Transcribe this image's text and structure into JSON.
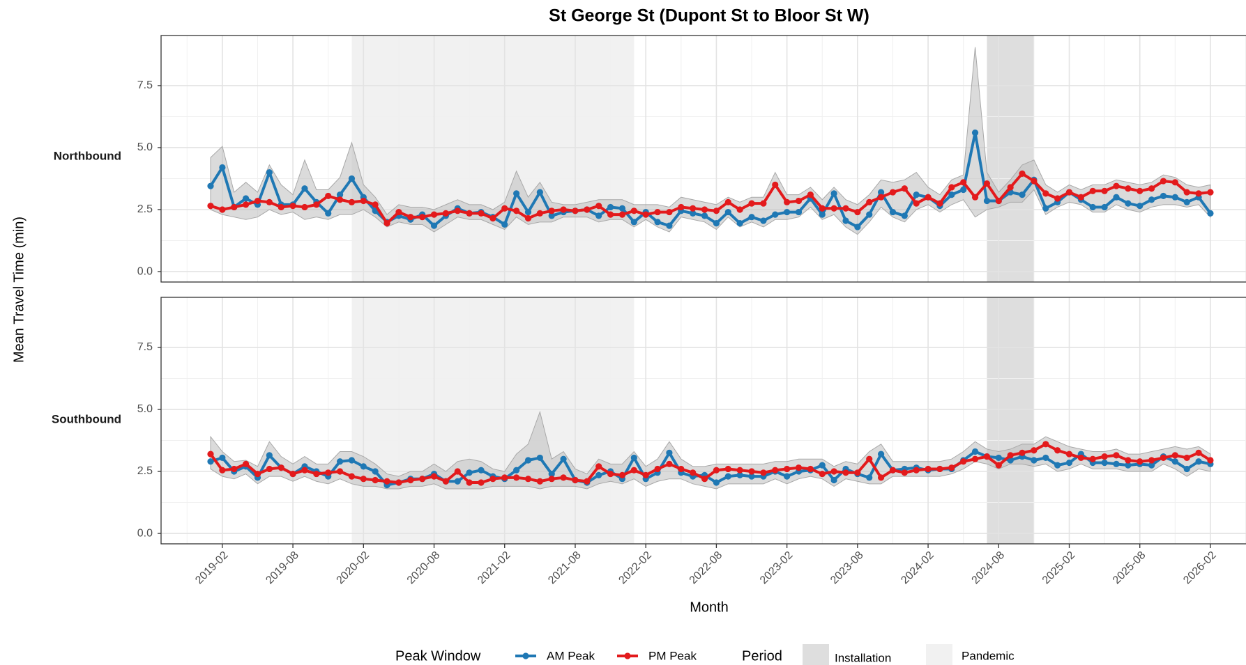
{
  "chart_data": {
    "type": "line",
    "title": "St George St (Dupont St to Bloor St W)",
    "x_label": "Month",
    "y_label": "Mean Travel Time (min)",
    "x": [
      "2019-01",
      "2019-02",
      "2019-03",
      "2019-04",
      "2019-05",
      "2019-06",
      "2019-07",
      "2019-08",
      "2019-09",
      "2019-10",
      "2019-11",
      "2019-12",
      "2020-01",
      "2020-02",
      "2020-03",
      "2020-04",
      "2020-05",
      "2020-06",
      "2020-07",
      "2020-08",
      "2020-09",
      "2020-10",
      "2020-11",
      "2020-12",
      "2021-01",
      "2021-02",
      "2021-03",
      "2021-04",
      "2021-05",
      "2021-06",
      "2021-07",
      "2021-08",
      "2021-09",
      "2021-10",
      "2021-11",
      "2021-12",
      "2022-01",
      "2022-02",
      "2022-03",
      "2022-04",
      "2022-05",
      "2022-06",
      "2022-07",
      "2022-08",
      "2022-09",
      "2022-10",
      "2022-11",
      "2022-12",
      "2023-01",
      "2023-02",
      "2023-03",
      "2023-04",
      "2023-05",
      "2023-06",
      "2023-07",
      "2023-08",
      "2023-09",
      "2023-10",
      "2023-11",
      "2023-12",
      "2024-01",
      "2024-02",
      "2024-03",
      "2024-04",
      "2024-05",
      "2024-06",
      "2024-07",
      "2024-08",
      "2024-09",
      "2024-10",
      "2024-11",
      "2024-12",
      "2025-01",
      "2025-02",
      "2025-03",
      "2025-04",
      "2025-05",
      "2025-06",
      "2025-07",
      "2025-08",
      "2025-09",
      "2025-10",
      "2025-11",
      "2025-12",
      "2026-01",
      "2026-02"
    ],
    "xticks": [
      "2019-02",
      "2019-08",
      "2020-02",
      "2020-08",
      "2021-02",
      "2021-08",
      "2022-02",
      "2022-08",
      "2023-02",
      "2023-08",
      "2024-02",
      "2024-08",
      "2025-02",
      "2025-08",
      "2026-02"
    ],
    "ylim": [
      -0.42,
      9.52
    ],
    "yticks": [
      {
        "value": 0,
        "label": "0.0"
      },
      {
        "value": 2.5,
        "label": "2.5"
      },
      {
        "value": 5,
        "label": "5.0"
      },
      {
        "value": 7.5,
        "label": "7.5"
      }
    ],
    "grid": true,
    "legend_title": "Peak Window",
    "period_legend_title": "Period",
    "periods": [
      {
        "name": "Installation",
        "start": "2024-07",
        "end": "2024-11",
        "color": "#dedede"
      },
      {
        "name": "Pandemic",
        "start": "2020-01",
        "end": "2022-01",
        "color": "#f1f1f1"
      }
    ],
    "panels": [
      {
        "label": "Northbound",
        "band": {
          "color": "#bdbdbd",
          "upper": [
            4.6,
            5.05,
            3.2,
            3.6,
            3.2,
            4.3,
            3.5,
            3.1,
            4.5,
            3.3,
            3.3,
            3.8,
            5.2,
            3.5,
            3.0,
            2.3,
            2.7,
            2.6,
            2.6,
            2.5,
            2.7,
            2.9,
            2.7,
            2.7,
            2.5,
            2.8,
            4.05,
            3.0,
            3.6,
            2.8,
            2.7,
            2.7,
            2.8,
            2.9,
            2.9,
            2.9,
            2.7,
            2.7,
            2.7,
            2.6,
            3.0,
            2.9,
            2.8,
            2.7,
            3.0,
            2.8,
            3.0,
            3.0,
            4.0,
            3.1,
            3.1,
            3.4,
            2.9,
            3.4,
            2.9,
            2.7,
            3.1,
            3.7,
            3.6,
            3.7,
            4.0,
            3.4,
            3.1,
            3.7,
            3.9,
            9.05,
            4.0,
            3.2,
            3.7,
            4.3,
            4.5,
            3.5,
            3.2,
            3.5,
            3.3,
            3.5,
            3.5,
            3.7,
            3.6,
            3.5,
            3.6,
            3.9,
            3.8,
            3.5,
            3.4,
            3.5
          ],
          "lower": [
            2.5,
            2.3,
            2.2,
            2.1,
            2.2,
            2.5,
            2.3,
            2.4,
            2.1,
            2.2,
            2.1,
            2.3,
            2.3,
            2.5,
            2.2,
            1.8,
            2.0,
            1.9,
            1.9,
            1.6,
            1.9,
            2.2,
            2.1,
            2.1,
            1.9,
            1.7,
            2.2,
            1.9,
            2.0,
            2.0,
            2.2,
            2.2,
            2.2,
            2.0,
            2.1,
            2.1,
            1.8,
            2.1,
            1.8,
            1.6,
            2.2,
            2.1,
            2.0,
            1.7,
            2.2,
            1.8,
            2.0,
            1.8,
            2.1,
            2.1,
            2.2,
            2.6,
            2.1,
            2.3,
            1.8,
            1.5,
            2.0,
            2.6,
            2.2,
            2.0,
            2.5,
            2.7,
            2.4,
            2.7,
            2.9,
            2.2,
            2.5,
            2.6,
            2.8,
            2.8,
            3.3,
            2.3,
            2.6,
            2.8,
            2.7,
            2.4,
            2.4,
            2.7,
            2.5,
            2.4,
            2.6,
            2.7,
            2.7,
            2.6,
            2.7,
            2.2
          ]
        },
        "series": [
          {
            "name": "AM Peak",
            "color": "#1f78b4",
            "values": [
              3.45,
              4.2,
              2.6,
              2.95,
              2.7,
              4.0,
              2.7,
              2.7,
              3.35,
              2.8,
              2.35,
              3.1,
              3.75,
              3.0,
              2.45,
              2.0,
              2.25,
              2.1,
              2.3,
              1.85,
              2.25,
              2.55,
              2.35,
              2.4,
              2.2,
              1.9,
              3.15,
              2.4,
              3.2,
              2.25,
              2.4,
              2.45,
              2.5,
              2.25,
              2.6,
              2.55,
              2.0,
              2.4,
              2.0,
              1.85,
              2.45,
              2.35,
              2.25,
              1.95,
              2.4,
              1.95,
              2.2,
              2.05,
              2.3,
              2.4,
              2.4,
              2.95,
              2.3,
              3.15,
              2.05,
              1.8,
              2.3,
              3.2,
              2.4,
              2.25,
              3.1,
              3.0,
              2.65,
              3.1,
              3.3,
              5.6,
              2.85,
              2.85,
              3.2,
              3.1,
              3.7,
              2.55,
              2.8,
              3.2,
              2.9,
              2.6,
              2.6,
              3.0,
              2.75,
              2.65,
              2.9,
              3.05,
              3.0,
              2.8,
              3.0,
              2.35
            ]
          },
          {
            "name": "PM Peak",
            "color": "#e31a1c",
            "values": [
              2.65,
              2.5,
              2.6,
              2.7,
              2.85,
              2.8,
              2.6,
              2.65,
              2.6,
              2.7,
              3.05,
              2.9,
              2.8,
              2.85,
              2.7,
              1.95,
              2.4,
              2.2,
              2.2,
              2.3,
              2.35,
              2.45,
              2.35,
              2.35,
              2.15,
              2.55,
              2.45,
              2.15,
              2.35,
              2.45,
              2.5,
              2.45,
              2.5,
              2.65,
              2.3,
              2.3,
              2.45,
              2.3,
              2.4,
              2.4,
              2.6,
              2.55,
              2.5,
              2.45,
              2.8,
              2.5,
              2.75,
              2.75,
              3.5,
              2.8,
              2.85,
              3.1,
              2.55,
              2.55,
              2.55,
              2.4,
              2.8,
              3.0,
              3.2,
              3.35,
              2.75,
              3.0,
              2.75,
              3.4,
              3.6,
              3.0,
              3.55,
              2.85,
              3.4,
              3.95,
              3.65,
              3.15,
              2.95,
              3.2,
              3.0,
              3.25,
              3.25,
              3.45,
              3.35,
              3.25,
              3.35,
              3.65,
              3.6,
              3.2,
              3.15,
              3.2
            ]
          }
        ]
      },
      {
        "label": "Southbound",
        "band": {
          "color": "#bdbdbd",
          "upper": [
            3.9,
            3.3,
            2.9,
            2.95,
            2.7,
            3.7,
            3.1,
            2.8,
            3.1,
            2.8,
            2.8,
            3.3,
            3.3,
            3.1,
            2.8,
            2.4,
            2.3,
            2.5,
            2.5,
            2.8,
            2.5,
            2.9,
            3.0,
            2.9,
            2.6,
            2.5,
            3.2,
            3.6,
            4.9,
            3.0,
            3.3,
            2.6,
            2.4,
            3.0,
            2.8,
            2.8,
            3.3,
            2.7,
            3.0,
            3.7,
            3.0,
            2.7,
            2.7,
            2.8,
            2.8,
            2.8,
            2.8,
            2.8,
            2.9,
            2.9,
            3.0,
            3.0,
            3.0,
            2.7,
            2.9,
            2.8,
            3.3,
            3.6,
            2.9,
            2.9,
            2.9,
            2.9,
            2.9,
            3.0,
            3.3,
            3.7,
            3.4,
            3.3,
            3.4,
            3.6,
            3.6,
            3.9,
            3.7,
            3.5,
            3.4,
            3.3,
            3.3,
            3.4,
            3.2,
            3.2,
            3.3,
            3.4,
            3.5,
            3.4,
            3.5,
            3.2
          ],
          "lower": [
            2.6,
            2.3,
            2.2,
            2.4,
            2.0,
            2.3,
            2.3,
            2.1,
            2.3,
            2.1,
            2.0,
            2.2,
            2.0,
            1.9,
            1.9,
            1.8,
            1.8,
            1.9,
            1.9,
            2.0,
            1.8,
            1.8,
            1.8,
            1.8,
            1.9,
            1.9,
            1.9,
            1.9,
            1.8,
            1.9,
            1.9,
            1.9,
            1.8,
            2.0,
            2.1,
            2.0,
            2.2,
            1.9,
            2.1,
            2.2,
            2.2,
            2.0,
            1.9,
            1.8,
            2.0,
            2.0,
            2.0,
            2.0,
            2.2,
            2.0,
            2.2,
            2.3,
            2.2,
            1.9,
            2.2,
            2.1,
            2.0,
            2.0,
            2.3,
            2.3,
            2.3,
            2.3,
            2.3,
            2.4,
            2.6,
            2.9,
            2.8,
            2.6,
            2.8,
            2.8,
            2.7,
            2.8,
            2.5,
            2.6,
            2.8,
            2.6,
            2.6,
            2.6,
            2.5,
            2.5,
            2.5,
            2.8,
            2.6,
            2.3,
            2.6,
            2.5
          ]
        },
        "series": [
          {
            "name": "AM Peak",
            "color": "#1f78b4",
            "values": [
              2.9,
              3.05,
              2.5,
              2.7,
              2.25,
              3.15,
              2.65,
              2.4,
              2.7,
              2.5,
              2.3,
              2.9,
              2.95,
              2.7,
              2.5,
              1.95,
              2.05,
              2.2,
              2.2,
              2.4,
              2.1,
              2.1,
              2.45,
              2.55,
              2.3,
              2.2,
              2.55,
              2.95,
              3.05,
              2.4,
              3.0,
              2.15,
              2.05,
              2.35,
              2.5,
              2.2,
              3.05,
              2.2,
              2.45,
              3.25,
              2.45,
              2.3,
              2.35,
              2.05,
              2.3,
              2.35,
              2.3,
              2.3,
              2.5,
              2.3,
              2.5,
              2.55,
              2.75,
              2.15,
              2.6,
              2.4,
              2.25,
              3.2,
              2.55,
              2.6,
              2.65,
              2.55,
              2.6,
              2.6,
              2.95,
              3.3,
              3.1,
              3.05,
              2.95,
              3.1,
              2.95,
              3.05,
              2.75,
              2.85,
              3.2,
              2.85,
              2.85,
              2.8,
              2.75,
              2.8,
              2.75,
              3.1,
              2.9,
              2.6,
              2.9,
              2.8
            ]
          },
          {
            "name": "PM Peak",
            "color": "#e31a1c",
            "values": [
              3.2,
              2.55,
              2.6,
              2.8,
              2.4,
              2.6,
              2.65,
              2.4,
              2.55,
              2.4,
              2.45,
              2.5,
              2.3,
              2.2,
              2.15,
              2.1,
              2.05,
              2.15,
              2.2,
              2.3,
              2.1,
              2.5,
              2.05,
              2.05,
              2.2,
              2.25,
              2.25,
              2.2,
              2.1,
              2.2,
              2.25,
              2.15,
              2.1,
              2.7,
              2.4,
              2.35,
              2.55,
              2.35,
              2.6,
              2.8,
              2.6,
              2.45,
              2.2,
              2.55,
              2.6,
              2.55,
              2.5,
              2.45,
              2.55,
              2.6,
              2.65,
              2.6,
              2.4,
              2.5,
              2.45,
              2.45,
              3.0,
              2.25,
              2.55,
              2.45,
              2.55,
              2.6,
              2.6,
              2.65,
              2.9,
              3.0,
              3.1,
              2.75,
              3.15,
              3.25,
              3.35,
              3.6,
              3.35,
              3.2,
              3.05,
              3.0,
              3.1,
              3.15,
              2.95,
              2.9,
              2.95,
              3.05,
              3.15,
              3.05,
              3.25,
              2.95
            ]
          }
        ]
      }
    ]
  }
}
